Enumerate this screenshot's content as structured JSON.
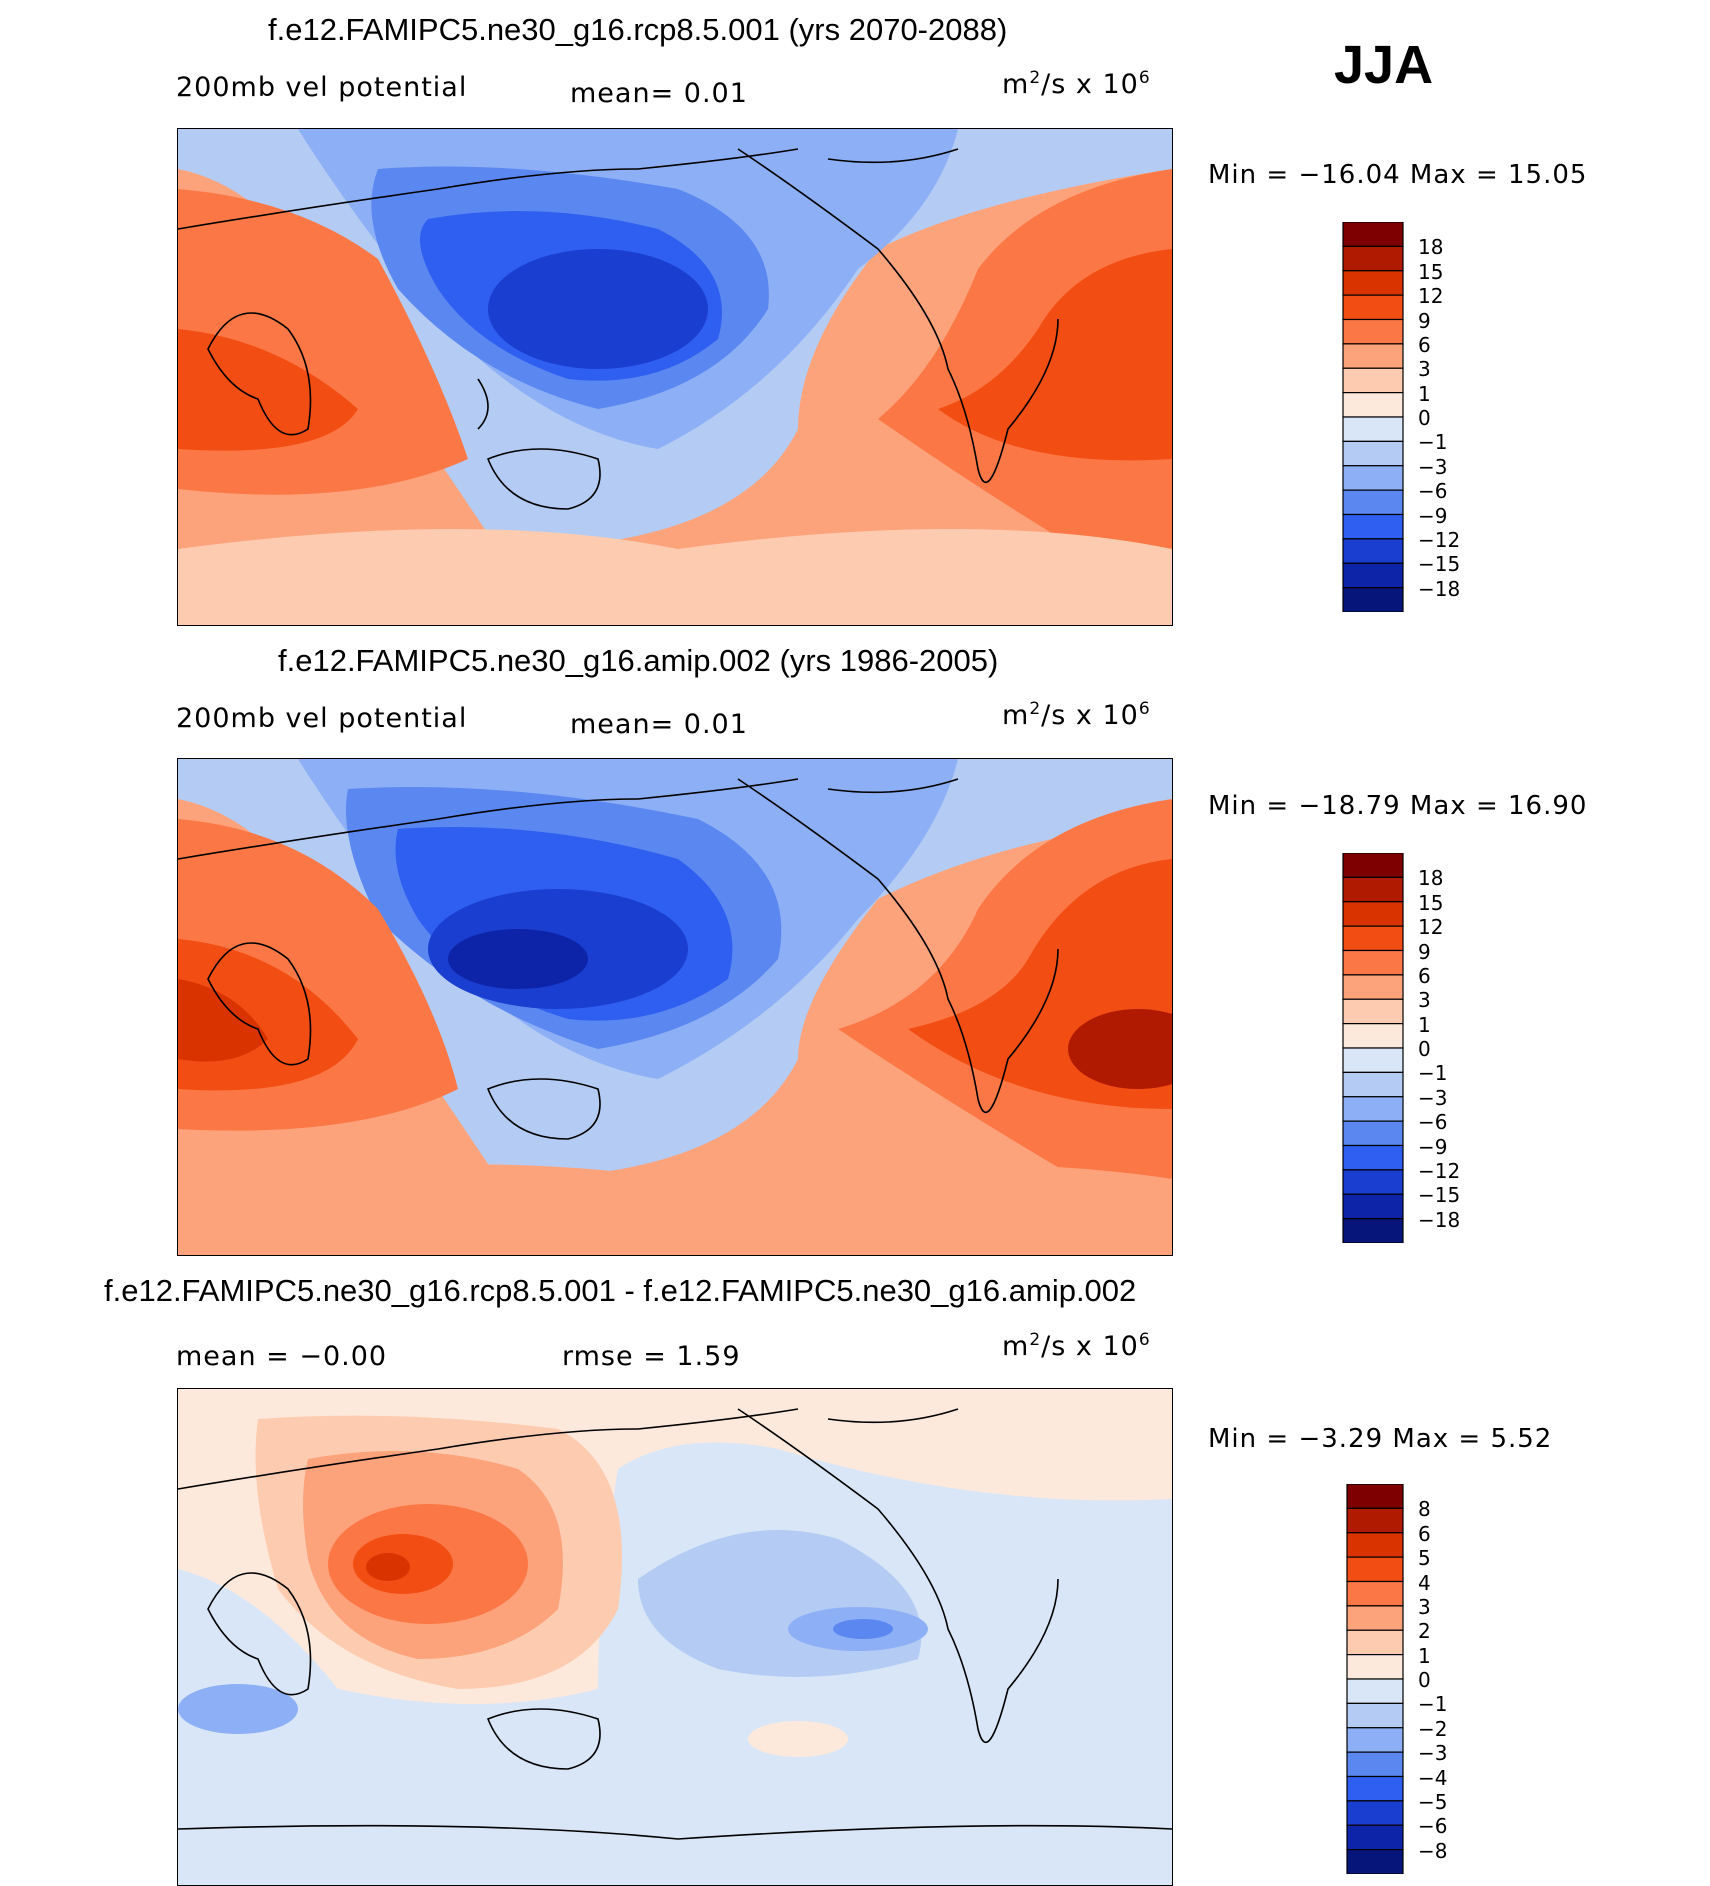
{
  "season": "JJA",
  "units_sup": "2",
  "units_mid": "/s x 10",
  "units_exp": "6",
  "panels": [
    {
      "title": "f.e12.FAMIPC5.ne30_g16.rcp8.5.001 (yrs 2070-2088)",
      "left_label": "200mb vel potential",
      "mid_label": "mean=    0.01",
      "units_prefix": "m",
      "minmax": "Min = −16.04 Max =   15.05"
    },
    {
      "title": "f.e12.FAMIPC5.ne30_g16.amip.002 (yrs 1986-2005)",
      "left_label": "200mb vel potential",
      "mid_label": "mean=    0.01",
      "units_prefix": "m",
      "minmax": "Min = −18.79 Max =   16.90"
    },
    {
      "title": "f.e12.FAMIPC5.ne30_g16.rcp8.5.001 - f.e12.FAMIPC5.ne30_g16.amip.002",
      "left_label": "mean =   −0.00",
      "mid_label": "rmse =    1.59",
      "units_prefix": "m",
      "minmax": "Min =   −3.29 Max =    5.52"
    }
  ],
  "chart_data": [
    {
      "type": "heatmap",
      "title": "f.e12.FAMIPC5.ne30_g16.rcp8.5.001 (yrs 2070-2088)",
      "variable": "200mb vel potential",
      "mean": 0.01,
      "min": -16.04,
      "max": 15.05,
      "colorbar_levels": [
        18,
        15,
        12,
        9,
        6,
        3,
        1,
        0,
        -1,
        -3,
        -6,
        -9,
        -12,
        -15,
        -18
      ],
      "colorbar_colors": [
        "#7f0000",
        "#b01a00",
        "#d93300",
        "#f24d12",
        "#fb7846",
        "#fca37c",
        "#fdcbb0",
        "#fde9dc",
        "#d8e6f7",
        "#b4ccf4",
        "#8daff5",
        "#5b87f0",
        "#2f5ff0",
        "#1a3ecf",
        "#0d24a8",
        "#05157a"
      ]
    },
    {
      "type": "heatmap",
      "title": "f.e12.FAMIPC5.ne30_g16.amip.002 (yrs 1986-2005)",
      "variable": "200mb vel potential",
      "mean": 0.01,
      "min": -18.79,
      "max": 16.9,
      "colorbar_levels": [
        18,
        15,
        12,
        9,
        6,
        3,
        1,
        0,
        -1,
        -3,
        -6,
        -9,
        -12,
        -15,
        -18
      ],
      "colorbar_colors": [
        "#7f0000",
        "#b01a00",
        "#d93300",
        "#f24d12",
        "#fb7846",
        "#fca37c",
        "#fdcbb0",
        "#fde9dc",
        "#d8e6f7",
        "#b4ccf4",
        "#8daff5",
        "#5b87f0",
        "#2f5ff0",
        "#1a3ecf",
        "#0d24a8",
        "#05157a"
      ]
    },
    {
      "type": "heatmap",
      "title": "f.e12.FAMIPC5.ne30_g16.rcp8.5.001 - f.e12.FAMIPC5.ne30_g16.amip.002",
      "mean": -0.0,
      "rmse": 1.59,
      "min": -3.29,
      "max": 5.52,
      "colorbar_levels": [
        8,
        6,
        5,
        4,
        3,
        2,
        1,
        0,
        -1,
        -2,
        -3,
        -4,
        -5,
        -6,
        -8
      ],
      "colorbar_colors": [
        "#7f0000",
        "#b01a00",
        "#d93300",
        "#f24d12",
        "#fb7846",
        "#fca37c",
        "#fdcbb0",
        "#fde9dc",
        "#d8e6f7",
        "#b4ccf4",
        "#8daff5",
        "#5b87f0",
        "#2f5ff0",
        "#1a3ecf",
        "#0d24a8",
        "#05157a"
      ]
    }
  ]
}
